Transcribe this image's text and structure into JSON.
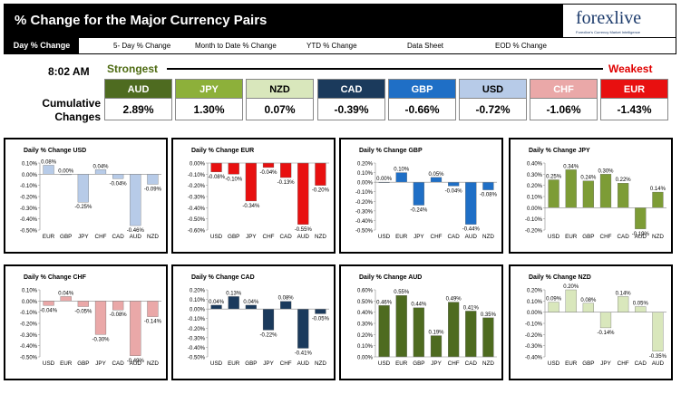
{
  "header": {
    "title": "% Change for the Major Currency Pairs",
    "logo_text": "forexlive",
    "logo_tagline": "Forexlive's Currency Market Intelligence"
  },
  "tabs": [
    "Day % Change",
    "5- Day % Change",
    "Month to Date % Change",
    "YTD % Change",
    "Data Sheet",
    "EOD % Change"
  ],
  "time": "8:02 AM",
  "strongest_label": "Strongest",
  "weakest_label": "Weakest",
  "cumulative_label_1": "Cumulative",
  "cumulative_label_2": "Changes",
  "ranking": [
    {
      "currency": "AUD",
      "value": "2.89%",
      "color": "#4e6b20"
    },
    {
      "currency": "JPY",
      "value": "1.30%",
      "color": "#8db03a"
    },
    {
      "currency": "NZD",
      "value": "0.07%",
      "color": "#d9e7bc"
    },
    {
      "currency": "CAD",
      "value": "-0.39%",
      "color": "#1b3a5c"
    },
    {
      "currency": "GBP",
      "value": "-0.66%",
      "color": "#1f6fc6"
    },
    {
      "currency": "USD",
      "value": "-0.72%",
      "color": "#b7cbe8"
    },
    {
      "currency": "CHF",
      "value": "-1.06%",
      "color": "#eaa8a8"
    },
    {
      "currency": "EUR",
      "value": "-1.43%",
      "color": "#e81010"
    }
  ],
  "chart_data": [
    {
      "type": "bar",
      "title": "Daily % Change USD",
      "categories": [
        "EUR",
        "GBP",
        "JPY",
        "CHF",
        "CAD",
        "AUD",
        "NZD"
      ],
      "values": [
        0.08,
        0.0,
        -0.25,
        0.04,
        -0.04,
        -0.46,
        -0.09
      ],
      "labels": [
        "0.08%",
        "0.00%",
        "-0.25%",
        "0.04%",
        "-0.04%",
        "-0.46%",
        "-0.09%"
      ],
      "ylim": [
        -0.5,
        0.1
      ],
      "yticks": [
        0.1,
        0.0,
        -0.1,
        -0.2,
        -0.3,
        -0.4,
        -0.5
      ],
      "ytick_labels": [
        "0.10%",
        "0.00%",
        "-0.10%",
        "-0.20%",
        "-0.30%",
        "-0.40%",
        "-0.50%"
      ],
      "color": "#b7cbe8"
    },
    {
      "type": "bar",
      "title": "Daily % Change EUR",
      "categories": [
        "USD",
        "GBP",
        "JPY",
        "CHF",
        "CAD",
        "AUD",
        "NZD"
      ],
      "values": [
        -0.08,
        -0.1,
        -0.34,
        -0.04,
        -0.13,
        -0.55,
        -0.2
      ],
      "labels": [
        "-0.08%",
        "-0.10%",
        "-0.34%",
        "-0.04%",
        "-0.13%",
        "-0.55%",
        "-0.20%"
      ],
      "ylim": [
        -0.6,
        0.0
      ],
      "yticks": [
        0.0,
        -0.1,
        -0.2,
        -0.3,
        -0.4,
        -0.5,
        -0.6
      ],
      "ytick_labels": [
        "0.00%",
        "-0.10%",
        "-0.20%",
        "-0.30%",
        "-0.40%",
        "-0.50%",
        "-0.60%"
      ],
      "color": "#e81010"
    },
    {
      "type": "bar",
      "title": "Daily % Change GBP",
      "categories": [
        "USD",
        "EUR",
        "JPY",
        "CHF",
        "CAD",
        "AUD",
        "NZD"
      ],
      "values": [
        0.0,
        0.1,
        -0.24,
        0.05,
        -0.04,
        -0.44,
        -0.08
      ],
      "labels": [
        "0.00%",
        "0.10%",
        "-0.24%",
        "0.05%",
        "-0.04%",
        "-0.44%",
        "-0.08%"
      ],
      "ylim": [
        -0.5,
        0.2
      ],
      "yticks": [
        0.2,
        0.1,
        0.0,
        -0.1,
        -0.2,
        -0.3,
        -0.4,
        -0.5
      ],
      "ytick_labels": [
        "0.20%",
        "0.10%",
        "0.00%",
        "-0.10%",
        "-0.20%",
        "-0.30%",
        "-0.40%",
        "-0.50%"
      ],
      "color": "#1f6fc6"
    },
    {
      "type": "bar",
      "title": "Daily % Change JPY",
      "categories": [
        "USD",
        "EUR",
        "GBP",
        "CHF",
        "CAD",
        "AUD",
        "NZD"
      ],
      "values": [
        0.25,
        0.34,
        0.24,
        0.3,
        0.22,
        -0.19,
        0.14
      ],
      "labels": [
        "0.25%",
        "0.34%",
        "0.24%",
        "0.30%",
        "0.22%",
        "-0.19%",
        "0.14%"
      ],
      "ylim": [
        -0.2,
        0.4
      ],
      "yticks": [
        0.4,
        0.3,
        0.2,
        0.1,
        0.0,
        -0.1,
        -0.2
      ],
      "ytick_labels": [
        "0.40%",
        "0.30%",
        "0.20%",
        "0.10%",
        "0.00%",
        "-0.10%",
        "-0.20%"
      ],
      "color": "#7d9c36"
    },
    {
      "type": "bar",
      "title": "Daily % Change CHF",
      "categories": [
        "USD",
        "EUR",
        "GBP",
        "JPY",
        "CAD",
        "AUD",
        "NZD"
      ],
      "values": [
        -0.04,
        0.04,
        -0.05,
        -0.3,
        -0.08,
        -0.49,
        -0.14
      ],
      "labels": [
        "-0.04%",
        "0.04%",
        "-0.05%",
        "-0.30%",
        "-0.08%",
        "-0.49%",
        "-0.14%"
      ],
      "ylim": [
        -0.5,
        0.1
      ],
      "yticks": [
        0.1,
        0.0,
        -0.1,
        -0.2,
        -0.3,
        -0.4,
        -0.5
      ],
      "ytick_labels": [
        "0.10%",
        "0.00%",
        "-0.10%",
        "-0.20%",
        "-0.30%",
        "-0.40%",
        "-0.50%"
      ],
      "color": "#eaa8a8"
    },
    {
      "type": "bar",
      "title": "Daily % Change CAD",
      "categories": [
        "USD",
        "EUR",
        "GBP",
        "JPY",
        "CHF",
        "AUD",
        "NZD"
      ],
      "values": [
        0.04,
        0.13,
        0.04,
        -0.22,
        0.08,
        -0.41,
        -0.05
      ],
      "labels": [
        "0.04%",
        "0.13%",
        "0.04%",
        "-0.22%",
        "0.08%",
        "-0.41%",
        "-0.05%"
      ],
      "ylim": [
        -0.5,
        0.2
      ],
      "yticks": [
        0.2,
        0.1,
        0.0,
        -0.1,
        -0.2,
        -0.3,
        -0.4,
        -0.5
      ],
      "ytick_labels": [
        "0.20%",
        "0.10%",
        "0.00%",
        "-0.10%",
        "-0.20%",
        "-0.30%",
        "-0.40%",
        "-0.50%"
      ],
      "color": "#1b3a5c"
    },
    {
      "type": "bar",
      "title": "Daily % Change AUD",
      "categories": [
        "USD",
        "EUR",
        "GBP",
        "JPY",
        "CHF",
        "CAD",
        "NZD"
      ],
      "values": [
        0.46,
        0.55,
        0.44,
        0.19,
        0.49,
        0.41,
        0.35
      ],
      "labels": [
        "0.46%",
        "0.55%",
        "0.44%",
        "0.19%",
        "0.49%",
        "0.41%",
        "0.35%"
      ],
      "ylim": [
        0.0,
        0.6
      ],
      "yticks": [
        0.6,
        0.5,
        0.4,
        0.3,
        0.2,
        0.1,
        0.0
      ],
      "ytick_labels": [
        "0.60%",
        "0.50%",
        "0.40%",
        "0.30%",
        "0.20%",
        "0.10%",
        "0.00%"
      ],
      "color": "#4e6b20"
    },
    {
      "type": "bar",
      "title": "Daily % Change NZD",
      "categories": [
        "USD",
        "EUR",
        "GBP",
        "JPY",
        "CHF",
        "CAD",
        "AUD"
      ],
      "values": [
        0.09,
        0.2,
        0.08,
        -0.14,
        0.14,
        0.05,
        -0.35
      ],
      "labels": [
        "0.09%",
        "0.20%",
        "0.08%",
        "-0.14%",
        "0.14%",
        "0.05%",
        "-0.35%"
      ],
      "ylim": [
        -0.4,
        0.2
      ],
      "yticks": [
        0.2,
        0.1,
        0.0,
        -0.1,
        -0.2,
        -0.3,
        -0.4
      ],
      "ytick_labels": [
        "0.20%",
        "0.10%",
        "0.00%",
        "-0.10%",
        "-0.20%",
        "-0.30%",
        "-0.40%"
      ],
      "color": "#d9e7bc"
    }
  ]
}
